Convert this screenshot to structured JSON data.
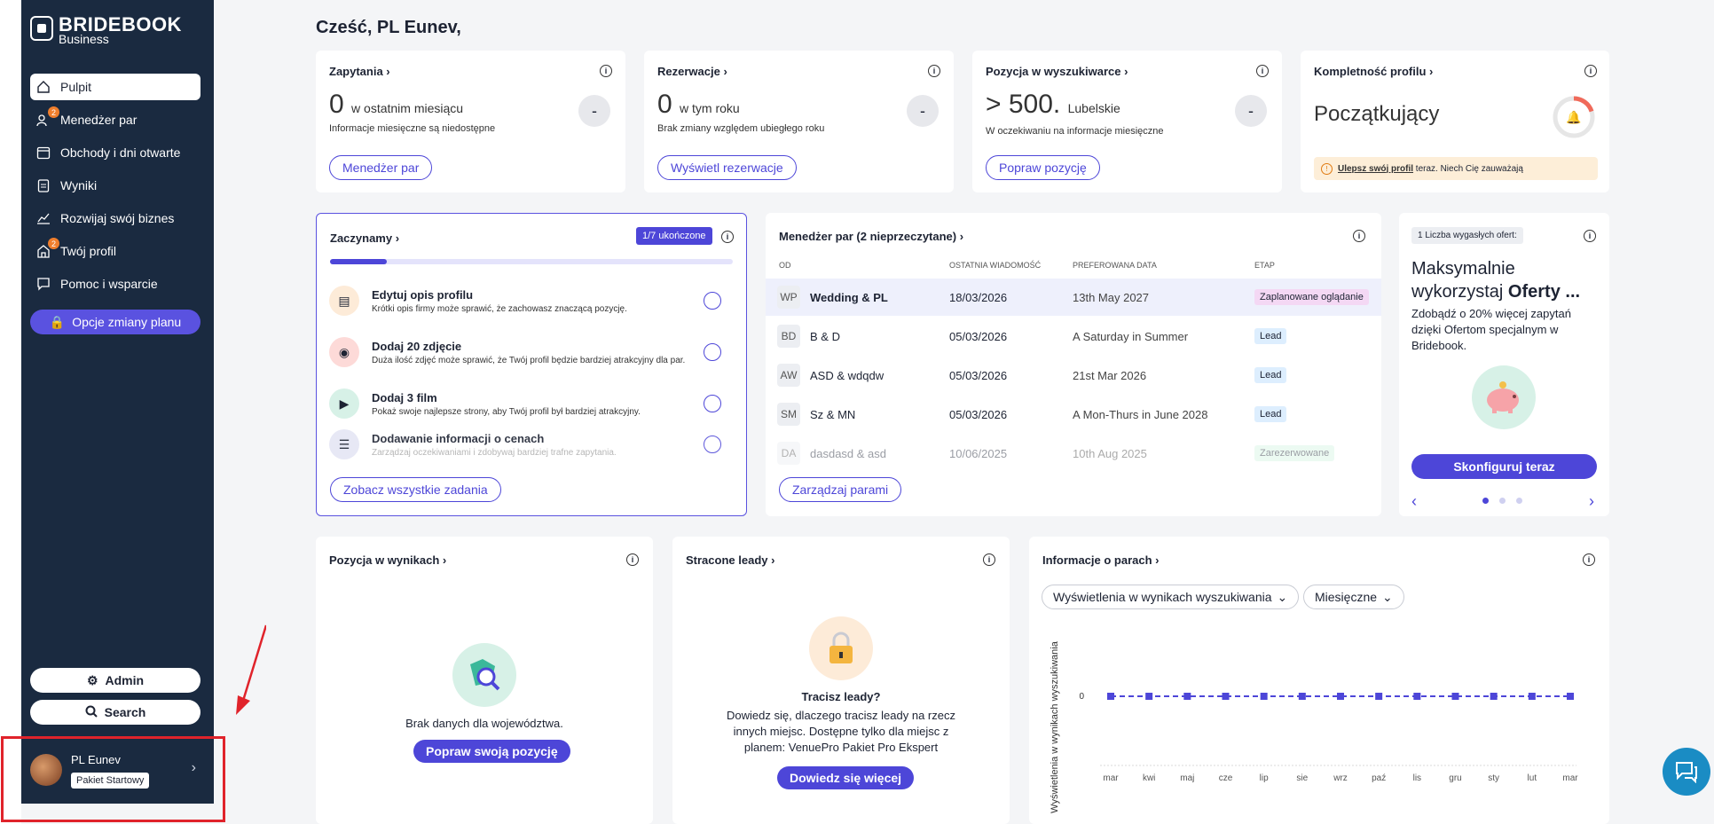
{
  "sidebar": {
    "logo": {
      "name": "BRIDEBOOK",
      "sub": "Business"
    },
    "items": [
      {
        "label": "Pulpit",
        "icon": "home-icon"
      },
      {
        "label": "Menedżer par",
        "icon": "users-icon",
        "badge": "2"
      },
      {
        "label": "Obchody i dni otwarte",
        "icon": "calendar-icon"
      },
      {
        "label": "Wyniki",
        "icon": "clipboard-icon"
      },
      {
        "label": "Rozwijaj swój biznes",
        "icon": "chart-line-icon"
      },
      {
        "label": "Twój profil",
        "icon": "building-icon",
        "badge": "2"
      },
      {
        "label": "Pomoc i wsparcie",
        "icon": "chat-icon"
      }
    ],
    "plan_button": "Opcje zmiany planu",
    "admin_button": "Admin",
    "search_button": "Search",
    "user": {
      "name": "PL Eunev",
      "plan": "Pakiet Startowy"
    }
  },
  "greeting": "Cześć, PL Eunev,",
  "stats": {
    "inquiries": {
      "title": "Zapytania",
      "value": "0",
      "unit": "w ostatnim miesiącu",
      "note": "Informacje miesięczne są niedostępne",
      "dash": "-",
      "button": "Menedżer par"
    },
    "bookings": {
      "title": "Rezerwacje",
      "value": "0",
      "unit": "w tym roku",
      "note": "Brak zmiany względem ubiegłego roku",
      "dash": "-",
      "button": "Wyświetl rezerwacje"
    },
    "search_position": {
      "title": "Pozycja w wyszukiwarce",
      "value": "> 500.",
      "unit": "Lubelskie",
      "note": "W oczekiwaniu na informacje miesięczne",
      "dash": "-",
      "button": "Popraw pozycję"
    },
    "completeness": {
      "title": "Kompletność profilu",
      "level": "Początkujący",
      "alert_link": "Ulepsz swój profil",
      "alert_rest": "teraz. Niech Cię zauważają",
      "progress": 0.2
    }
  },
  "start": {
    "title": "Zaczynamy",
    "badge": "1/7 ukończone",
    "progress": 0.14,
    "tasks": [
      {
        "title": "Edytuj opis profilu",
        "desc": "Krótki opis firmy może sprawić, że zachowasz znaczącą pozycję."
      },
      {
        "title": "Dodaj 20 zdjęcie",
        "desc": "Duża ilość zdjęć może sprawić, że Twój profil będzie bardziej atrakcyjny dla par."
      },
      {
        "title": "Dodaj 3 film",
        "desc": "Pokaż swoje najlepsze strony, aby Twój profil był bardziej atrakcyjny."
      },
      {
        "title": "Dodawanie informacji o cenach",
        "desc": "Zarządzaj oczekiwaniami i zdobywaj bardziej trafne zapytania."
      }
    ],
    "button": "Zobacz wszystkie zadania"
  },
  "couples": {
    "title": "Menedżer par (2 nieprzeczytane)",
    "headers": [
      "OD",
      "OSTATNIA WIADOMOŚĆ",
      "PREFEROWANA DATA",
      "ETAP"
    ],
    "rows": [
      {
        "ini": "WP",
        "name": "Wedding & PL",
        "last": "18/03/2026",
        "pref": "13th May 2027",
        "stage": "Zaplanowane oglądanie"
      },
      {
        "ini": "BD",
        "name": "B & D",
        "last": "05/03/2026",
        "pref": "A Saturday in Summer",
        "stage": "Lead"
      },
      {
        "ini": "AW",
        "name": "ASD & wdqdw",
        "last": "05/03/2026",
        "pref": "21st Mar 2026",
        "stage": "Lead"
      },
      {
        "ini": "SM",
        "name": "Sz & MN",
        "last": "05/03/2026",
        "pref": "A Mon-Thurs in June 2028",
        "stage": "Lead"
      },
      {
        "ini": "DA",
        "name": "dasdasd & asd",
        "last": "10/06/2025",
        "pref": "10th Aug 2025",
        "stage": "Zarezerwowane"
      }
    ],
    "button": "Zarządzaj parami"
  },
  "offers": {
    "tag": "1 Liczba wygasłych ofert:",
    "title_a": "Maksymalnie wykorzystaj",
    "title_b": "Oferty ...",
    "desc": "Zdobądź o 20% więcej zapytań dzięki Ofertom specjalnym w Bridebook.",
    "button": "Skonfiguruj teraz"
  },
  "results_position": {
    "title": "Pozycja w wynikach",
    "empty": "Brak danych dla województwa.",
    "button": "Popraw swoją pozycję"
  },
  "lost_leads": {
    "title": "Stracone leady",
    "question": "Tracisz leady?",
    "desc": "Dowiedz się, dlaczego tracisz leady na rzecz innych miejsc. Dostępne tylko dla miejsc z planem: VenuePro Pakiet Pro Ekspert",
    "button": "Dowiedz się więcej"
  },
  "couple_info": {
    "title": "Informacje o parach",
    "filter1": "Wyświetlenia w wynikach wyszukiwania",
    "filter2": "Miesięczne"
  },
  "chart_data": {
    "type": "line",
    "ylabel": "Wyświetlenia w wynikach wyszukiwania",
    "categories": [
      "mar",
      "kwi",
      "maj",
      "cze",
      "lip",
      "sie",
      "wrz",
      "paź",
      "lis",
      "gru",
      "sty",
      "lut",
      "mar"
    ],
    "values": [
      0,
      0,
      0,
      0,
      0,
      0,
      0,
      0,
      0,
      0,
      0,
      0,
      0
    ],
    "yticks": [
      "0"
    ],
    "color": "#4d46d8"
  }
}
